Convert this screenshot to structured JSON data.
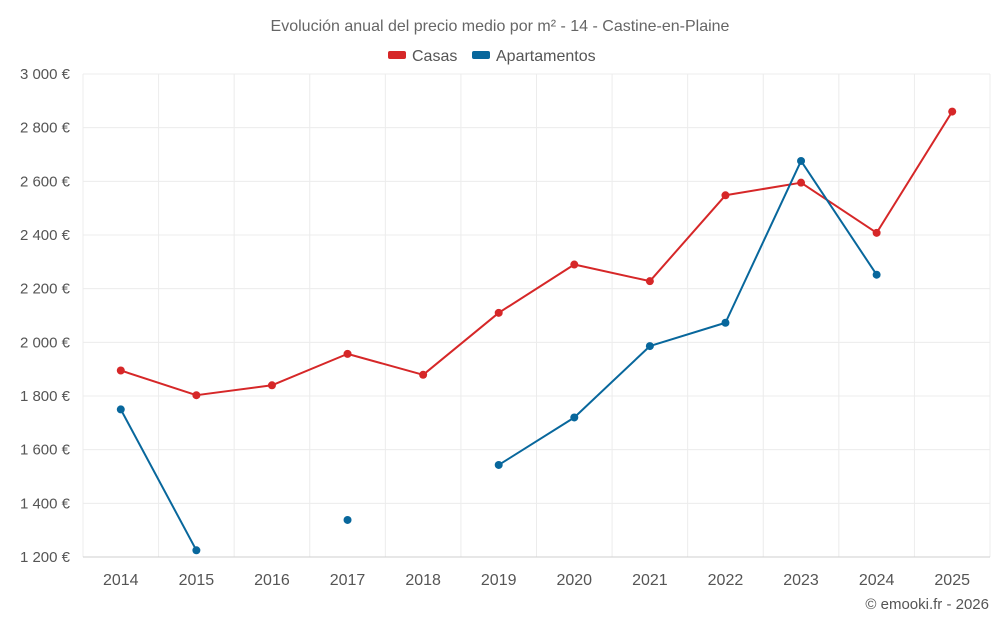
{
  "chart_data": {
    "type": "line",
    "title": "Evolución anual del precio medio por m² - 14 - Castine-en-Plaine",
    "xlabel": "",
    "ylabel": "",
    "categories": [
      "2014",
      "2015",
      "2016",
      "2017",
      "2018",
      "2019",
      "2020",
      "2021",
      "2022",
      "2023",
      "2024",
      "2025"
    ],
    "ylim": [
      1200,
      3000
    ],
    "yticks": [
      1200,
      1400,
      1600,
      1800,
      2000,
      2200,
      2400,
      2600,
      2800,
      3000
    ],
    "ytick_labels": [
      "1 200 €",
      "1 400 €",
      "1 600 €",
      "1 800 €",
      "2 000 €",
      "2 200 €",
      "2 400 €",
      "2 600 €",
      "2 800 €",
      "3 000 €"
    ],
    "grid": true,
    "legend_position": "top-center",
    "series": [
      {
        "name": "Casas",
        "color": "#d62728",
        "values": [
          1895,
          1803,
          1840,
          1957,
          1879,
          2110,
          2290,
          2228,
          2548,
          2595,
          2408,
          2860
        ]
      },
      {
        "name": "Apartamentos",
        "color": "#08679c",
        "values": [
          1750,
          1225,
          null,
          1338,
          null,
          1543,
          1720,
          1986,
          2073,
          2676,
          2252,
          null
        ]
      }
    ],
    "credit": "© emooki.fr - 2026"
  }
}
